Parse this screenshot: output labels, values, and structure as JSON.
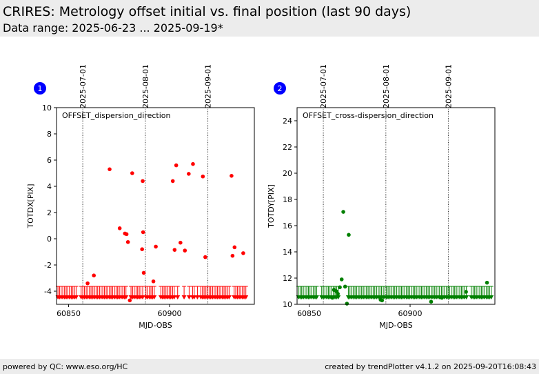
{
  "header": {
    "title": "CRIRES: Metrology offset initial vs. final position (last 90 days)",
    "subtitle": "Data range: 2025-06-23 ... 2025-09-19*"
  },
  "footer": {
    "left": "powered by QC: www.eso.org/HC",
    "right": "created by trendPlotter v4.1.2 on 2025-09-20T16:08:43"
  },
  "chart_data": [
    {
      "type": "scatter",
      "panel_number": "1",
      "panel_badge_color": "#0000ff",
      "annotation": "OFFSET_dispersion_direction",
      "xlabel": "MJD-OBS",
      "ylabel": "TOTDX[PIX]",
      "xlim": [
        60844,
        60942
      ],
      "ylim": [
        -5,
        10
      ],
      "xticks": [
        60850,
        60900
      ],
      "yticks": [
        -4,
        -2,
        0,
        2,
        4,
        6,
        8,
        10
      ],
      "date_markers": [
        {
          "mjd": 60857,
          "label": "2025-07-01"
        },
        {
          "mjd": 60888,
          "label": "2025-08-01"
        },
        {
          "mjd": 60919,
          "label": "2025-09-01"
        }
      ],
      "marker_color": "#ff0000",
      "series": [
        {
          "x": [
            60859.4,
            60862.5,
            60870.3,
            60875.3,
            60877.9,
            60878.7,
            60879.4,
            60880.3,
            60881.5,
            60886.4,
            60886.7,
            60886.9,
            60887.2,
            60892.0,
            60893.2,
            60901.6,
            60902.5,
            60903.3,
            60905.4,
            60907.6,
            60909.5,
            60911.6,
            60916.5,
            60917.7,
            60930.7,
            60931.2,
            60932.2,
            60936.5
          ],
          "y": [
            -3.4,
            -2.8,
            5.3,
            0.8,
            0.4,
            0.35,
            -0.25,
            -4.7,
            5.0,
            -0.8,
            4.4,
            0.5,
            -2.6,
            -3.25,
            -0.6,
            4.4,
            -0.85,
            5.6,
            -0.3,
            -0.9,
            4.95,
            5.7,
            4.75,
            -1.4,
            4.8,
            -1.3,
            -0.65,
            -1.1
          ]
        }
      ],
      "limit_x": [
        60844.7,
        60845.5,
        60846.3,
        60847.1,
        60848.0,
        60848.8,
        60849.6,
        60850.4,
        60851.3,
        60852.1,
        60852.9,
        60853.7,
        60856.2,
        60857.0,
        60857.8,
        60858.7,
        60859.5,
        60860.3,
        60861.1,
        60862.0,
        60862.8,
        60863.6,
        60864.4,
        60865.3,
        60866.1,
        60866.9,
        60867.7,
        60868.6,
        60869.4,
        60870.2,
        60871.0,
        60871.8,
        60872.7,
        60873.5,
        60874.3,
        60875.1,
        60876.0,
        60876.8,
        60877.6,
        60878.4,
        60880.9,
        60881.7,
        60882.5,
        60883.4,
        60884.2,
        60885.0,
        60885.8,
        60886.7,
        60888.3,
        60889.1,
        60890.0,
        60890.8,
        60891.6,
        60892.4,
        60895.7,
        60896.5,
        60897.3,
        60898.2,
        60899.0,
        60899.8,
        60900.6,
        60901.5,
        60902.3,
        60904.0,
        60907.2,
        60909.7,
        60911.4,
        60912.2,
        60913.8,
        60915.5,
        60916.3,
        60917.1,
        60918.0,
        60918.8,
        60919.6,
        60920.4,
        60921.3,
        60922.1,
        60922.9,
        60923.7,
        60924.6,
        60925.4,
        60926.2,
        60927.0,
        60927.9,
        60928.7,
        60929.5,
        60932.0,
        60932.8,
        60933.6,
        60934.5,
        60935.3,
        60936.1,
        60936.9,
        60937.8
      ]
    },
    {
      "type": "scatter",
      "panel_number": "2",
      "panel_badge_color": "#0000ff",
      "annotation": "OFFSET_cross-dispersion_direction",
      "xlabel": "MJD-OBS",
      "ylabel": "TOTDY[PIX]",
      "xlim": [
        60844,
        60942
      ],
      "ylim": [
        10,
        25
      ],
      "xticks": [
        60850,
        60900
      ],
      "yticks": [
        10,
        12,
        14,
        16,
        18,
        20,
        22,
        24
      ],
      "date_markers": [
        {
          "mjd": 60857,
          "label": "2025-07-01"
        },
        {
          "mjd": 60888,
          "label": "2025-08-01"
        },
        {
          "mjd": 60919,
          "label": "2025-09-01"
        }
      ],
      "marker_color": "#008000",
      "series": [
        {
          "x": [
            60861.5,
            60862.3,
            60863.4,
            60864.2,
            60865.2,
            60866.1,
            60866.9,
            60867.8,
            60868.7,
            60869.6,
            60885.4,
            60886.1,
            60910.4,
            60915.7,
            60927.7,
            60938.1
          ],
          "y": [
            10.5,
            11.1,
            11.0,
            10.8,
            11.3,
            11.9,
            17.05,
            11.35,
            10.05,
            15.3,
            10.35,
            10.3,
            10.2,
            10.5,
            10.95,
            11.65
          ]
        }
      ],
      "limit_x": [
        60844.7,
        60845.5,
        60846.3,
        60847.1,
        60848.0,
        60848.8,
        60849.6,
        60850.4,
        60851.3,
        60852.1,
        60852.9,
        60853.7,
        60856.2,
        60857.0,
        60857.8,
        60858.7,
        60859.5,
        60860.3,
        60861.1,
        60862.0,
        60862.8,
        60863.6,
        60864.4,
        60869.4,
        60870.2,
        60871.0,
        60871.8,
        60872.7,
        60873.5,
        60874.3,
        60875.1,
        60876.0,
        60876.8,
        60877.6,
        60878.4,
        60879.2,
        60880.1,
        60880.9,
        60881.7,
        60882.5,
        60883.4,
        60884.2,
        60885.0,
        60885.8,
        60886.7,
        60887.5,
        60888.3,
        60889.1,
        60890.0,
        60890.8,
        60891.6,
        60892.4,
        60893.3,
        60894.1,
        60894.9,
        60895.7,
        60896.5,
        60897.3,
        60898.2,
        60899.0,
        60899.8,
        60900.6,
        60901.5,
        60902.3,
        60903.1,
        60903.9,
        60904.8,
        60905.6,
        60906.4,
        60907.2,
        60908.0,
        60908.9,
        60909.7,
        60910.5,
        60911.3,
        60912.2,
        60913.0,
        60913.8,
        60914.6,
        60915.5,
        60916.3,
        60917.1,
        60918.0,
        60918.8,
        60919.6,
        60920.4,
        60921.3,
        60922.1,
        60922.9,
        60923.7,
        60924.6,
        60925.4,
        60926.2,
        60927.0,
        60927.9,
        60930.3,
        60931.2,
        60932.0,
        60932.8,
        60933.6,
        60934.5,
        60935.3,
        60936.1,
        60936.9,
        60937.8,
        60938.6,
        60939.4,
        60940.2
      ]
    }
  ]
}
